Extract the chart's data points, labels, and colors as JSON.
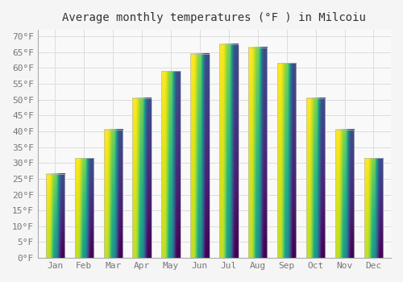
{
  "title": "Average monthly temperatures (°F ) in Milcoiu",
  "months": [
    "Jan",
    "Feb",
    "Mar",
    "Apr",
    "May",
    "Jun",
    "Jul",
    "Aug",
    "Sep",
    "Oct",
    "Nov",
    "Dec"
  ],
  "values": [
    26.5,
    31.5,
    40.5,
    50.5,
    59.0,
    64.5,
    67.5,
    66.5,
    61.5,
    50.5,
    40.5,
    31.5
  ],
  "bar_color_bottom": "#E8890A",
  "bar_color_top": "#FFD045",
  "background_color": "#f5f5f5",
  "plot_bg_color": "#f9f9f9",
  "grid_color": "#dddddd",
  "yticks": [
    0,
    5,
    10,
    15,
    20,
    25,
    30,
    35,
    40,
    45,
    50,
    55,
    60,
    65,
    70
  ],
  "ylim": [
    0,
    72
  ],
  "title_fontsize": 10,
  "tick_fontsize": 8,
  "font_family": "monospace",
  "bar_edge_color": "#bbbbbb",
  "bar_edge_width": 0.5
}
